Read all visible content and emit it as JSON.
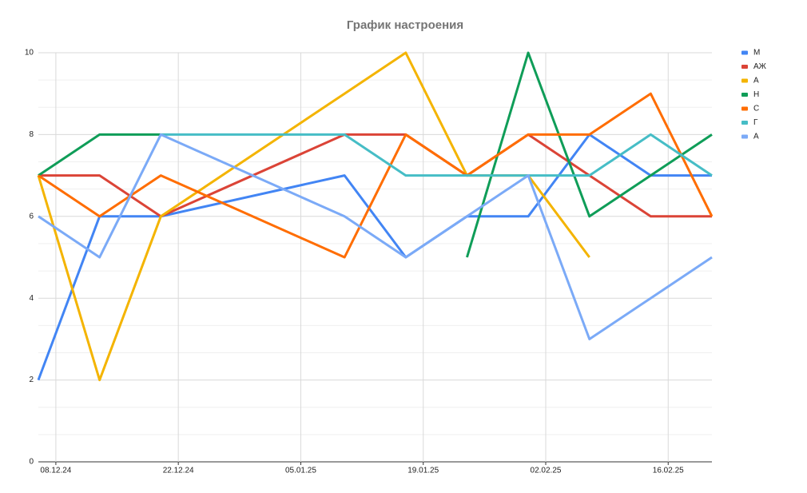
{
  "chart_data": {
    "type": "line",
    "title": "График настроения",
    "x": [
      "06.12.24",
      "13.12.24",
      "20.12.24",
      "10.01.25",
      "17.01.25",
      "24.01.25",
      "31.01.25",
      "07.02.25",
      "14.02.25",
      "21.02.25"
    ],
    "xlim": [
      "06.12.24",
      "21.02.25"
    ],
    "xticks": [
      "08.12.24",
      "22.12.24",
      "05.01.25",
      "19.01.25",
      "02.02.25",
      "16.02.25"
    ],
    "ylim": [
      0,
      10
    ],
    "yticks": [
      0,
      2,
      4,
      6,
      8,
      10
    ],
    "grid": true,
    "legend": "right",
    "series": [
      {
        "name": "М",
        "color": "#4285f4",
        "values": [
          2,
          6,
          6,
          7,
          5,
          6,
          6,
          8,
          7,
          7
        ]
      },
      {
        "name": "АЖ",
        "color": "#db4437",
        "values": [
          7,
          7,
          6,
          8,
          8,
          7,
          8,
          7,
          6,
          6
        ]
      },
      {
        "name": "А",
        "color": "#f4b400",
        "values": [
          7,
          2,
          6,
          9,
          10,
          7,
          7,
          5,
          null,
          null
        ]
      },
      {
        "name": "Н",
        "color": "#0f9d58",
        "values": [
          7,
          8,
          8,
          null,
          null,
          5,
          10,
          6,
          7,
          8
        ]
      },
      {
        "name": "С",
        "color": "#ff6d01",
        "values": [
          7,
          6,
          7,
          5,
          8,
          7,
          8,
          8,
          9,
          6
        ]
      },
      {
        "name": "Г",
        "color": "#46bdc6",
        "values": [
          null,
          null,
          8,
          8,
          7,
          7,
          7,
          7,
          8,
          7
        ]
      },
      {
        "name": "А",
        "color": "#7baaf7",
        "values": [
          6,
          5,
          8,
          6,
          5,
          6,
          7,
          3,
          4,
          5
        ]
      }
    ]
  }
}
